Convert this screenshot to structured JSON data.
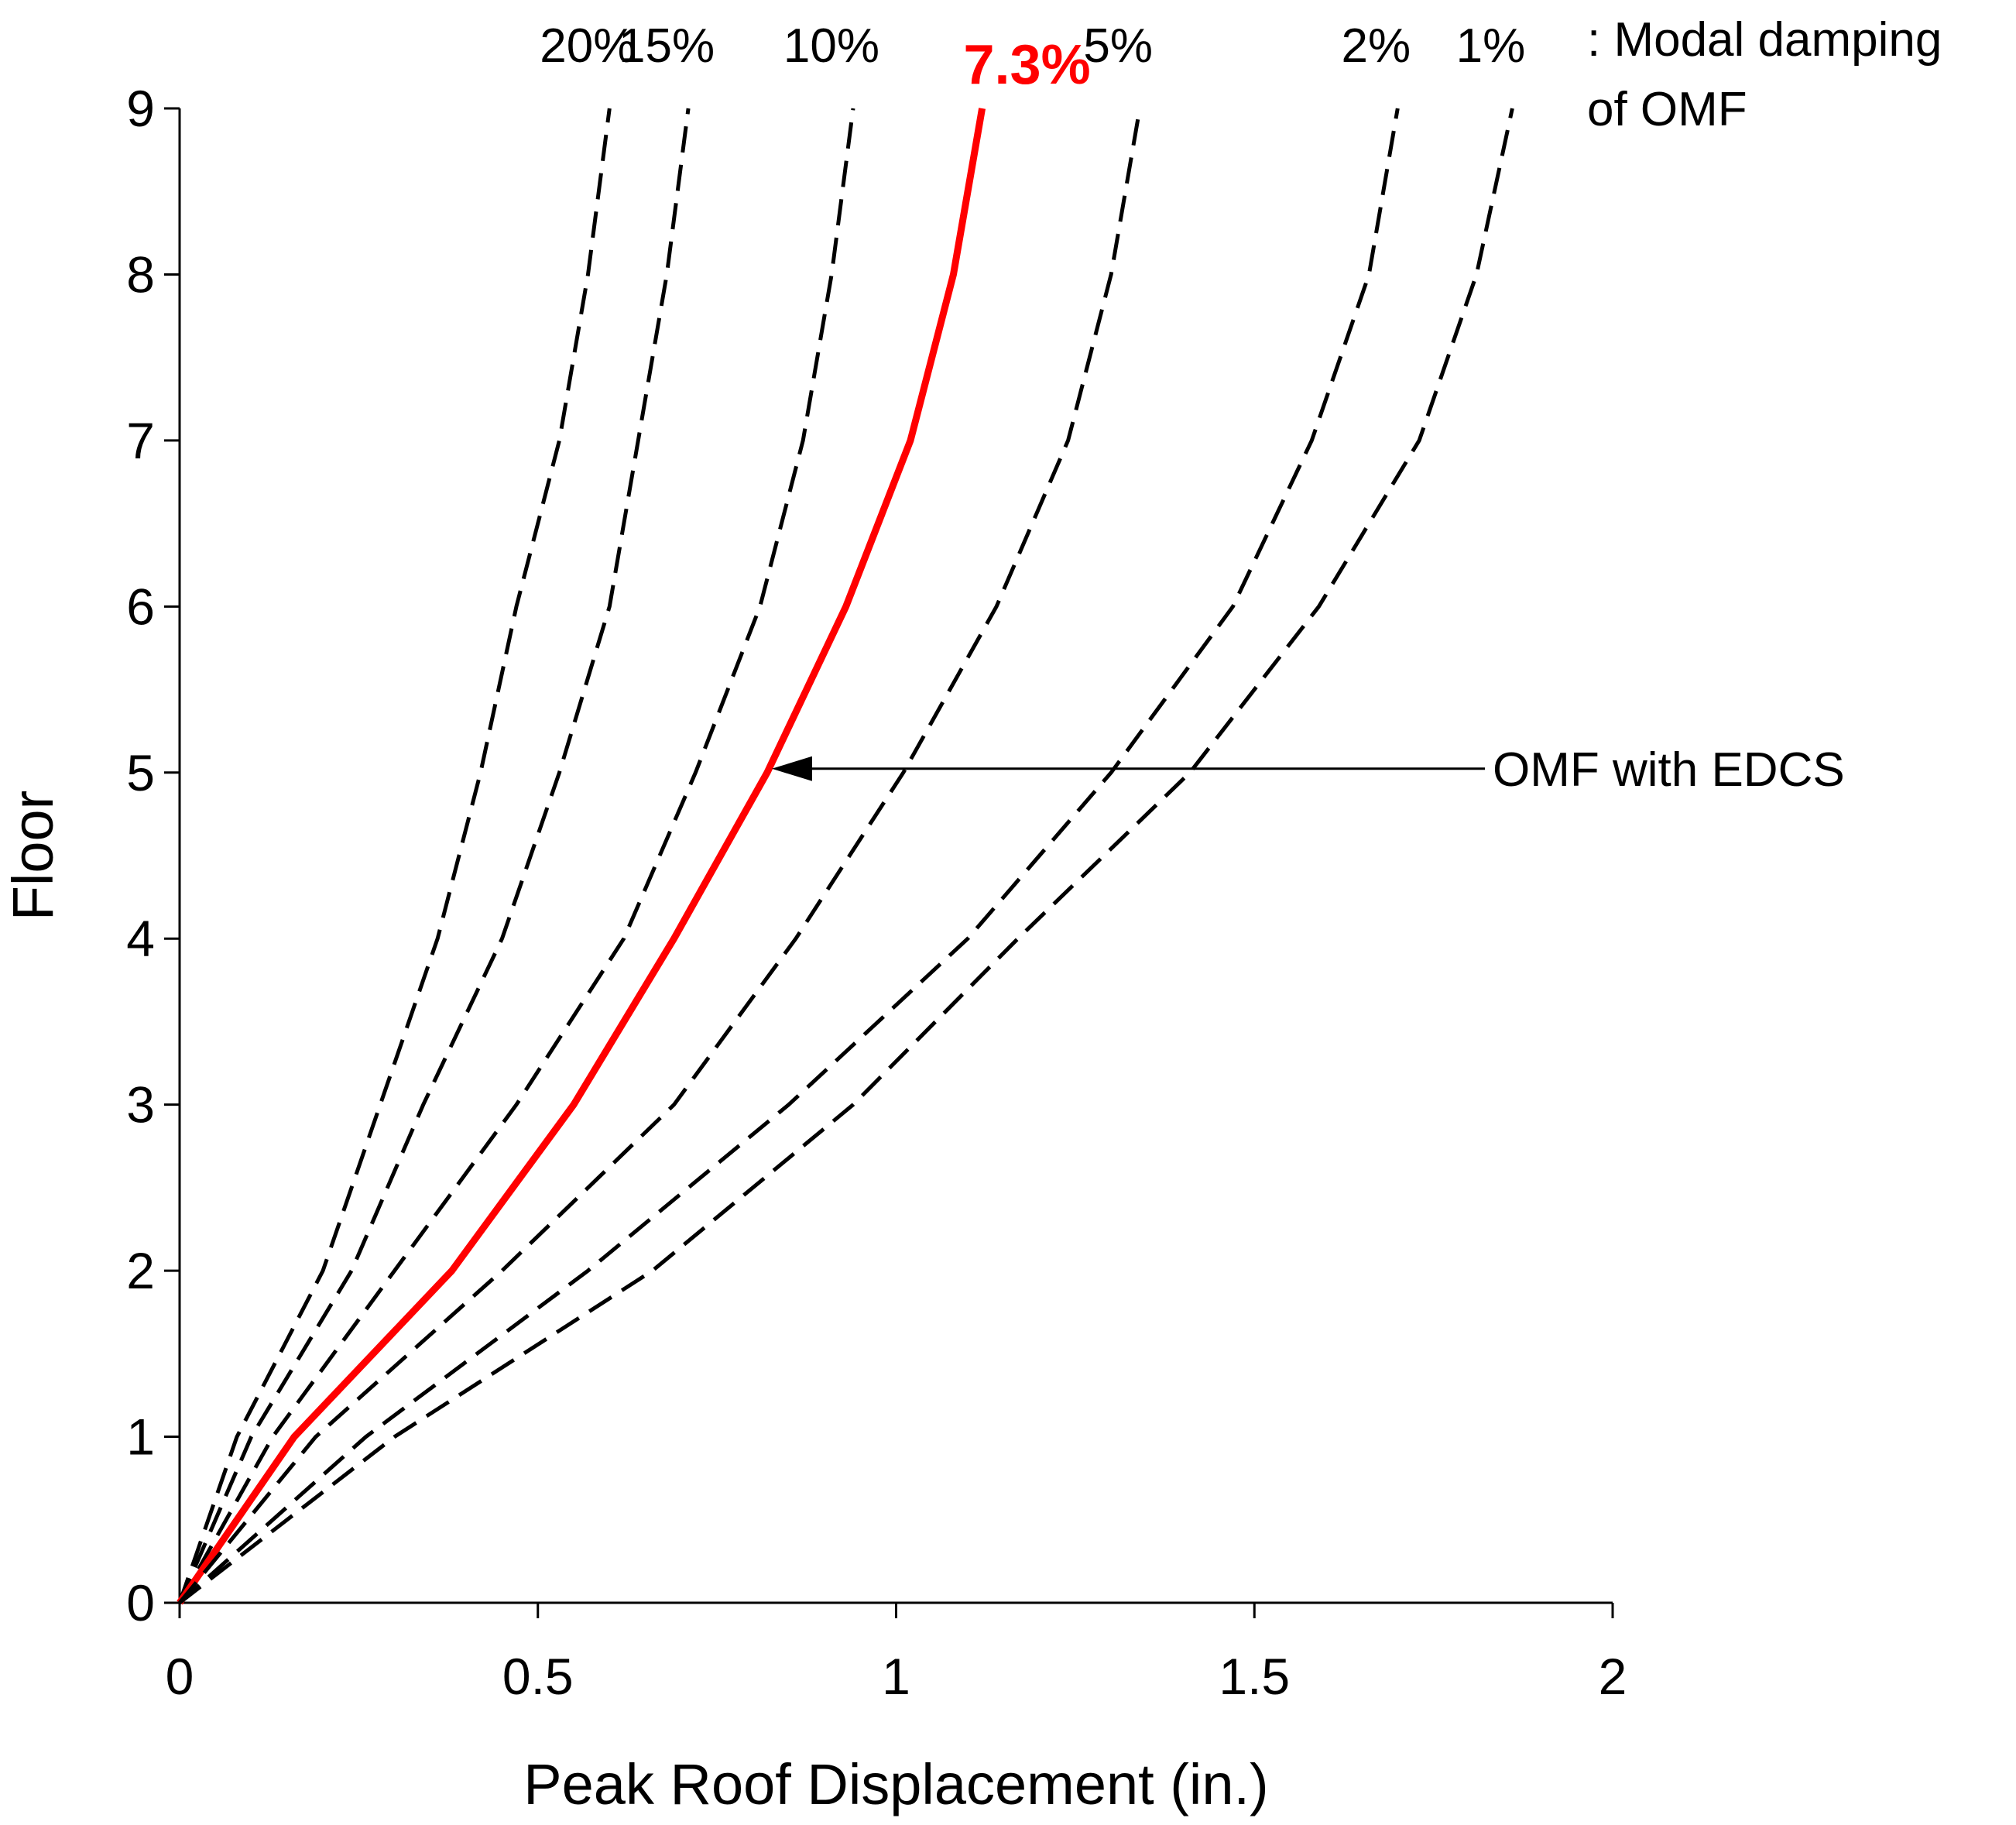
{
  "chart_data": {
    "type": "line",
    "title": "",
    "xlabel": "Peak Roof Displacement (in.)",
    "ylabel": "Floor",
    "xlim": [
      0,
      2
    ],
    "ylim": [
      0,
      9
    ],
    "x_ticks": [
      "0",
      "0.5",
      "1",
      "1.5",
      "2"
    ],
    "x_tick_values": [
      0,
      0.5,
      1,
      1.5,
      2
    ],
    "y_ticks": [
      "0",
      "1",
      "2",
      "3",
      "4",
      "5",
      "6",
      "7",
      "8",
      "9"
    ],
    "y_tick_values": [
      0,
      1,
      2,
      3,
      4,
      5,
      6,
      7,
      8,
      9
    ],
    "floors": [
      0,
      1,
      2,
      3,
      4,
      5,
      6,
      7,
      8,
      9
    ],
    "series": [
      {
        "name": "20%",
        "style": "dashed",
        "color": "#000000",
        "x": [
          0,
          0.08,
          0.2,
          0.28,
          0.36,
          0.42,
          0.47,
          0.53,
          0.57,
          0.6
        ]
      },
      {
        "name": "15%",
        "style": "dashed",
        "color": "#000000",
        "x": [
          0,
          0.1,
          0.24,
          0.34,
          0.45,
          0.53,
          0.6,
          0.64,
          0.68,
          0.71
        ]
      },
      {
        "name": "10%",
        "style": "dashed",
        "color": "#000000",
        "x": [
          0,
          0.13,
          0.3,
          0.47,
          0.62,
          0.72,
          0.81,
          0.87,
          0.91,
          0.94
        ]
      },
      {
        "name": "7.3%",
        "style": "solid",
        "color": "#ff0000",
        "x": [
          0,
          0.16,
          0.38,
          0.55,
          0.69,
          0.82,
          0.93,
          1.02,
          1.08,
          1.12
        ]
      },
      {
        "name": "5%",
        "style": "dashed",
        "color": "#000000",
        "x": [
          0,
          0.19,
          0.45,
          0.69,
          0.86,
          1.01,
          1.14,
          1.24,
          1.3,
          1.34
        ]
      },
      {
        "name": "2%",
        "style": "dashed",
        "color": "#000000",
        "x": [
          0,
          0.26,
          0.57,
          0.85,
          1.1,
          1.3,
          1.47,
          1.58,
          1.66,
          1.7
        ]
      },
      {
        "name": "1%",
        "style": "dashed",
        "color": "#000000",
        "x": [
          0,
          0.3,
          0.66,
          0.94,
          1.17,
          1.41,
          1.59,
          1.73,
          1.81,
          1.86
        ]
      }
    ],
    "legend_suffix": [
      ": Modal damping",
      "of OMF"
    ],
    "annotations": [
      {
        "text": "OMF with EDCS",
        "arrow_to_series": "7.3%",
        "arrow_to_floor": 5
      }
    ]
  }
}
